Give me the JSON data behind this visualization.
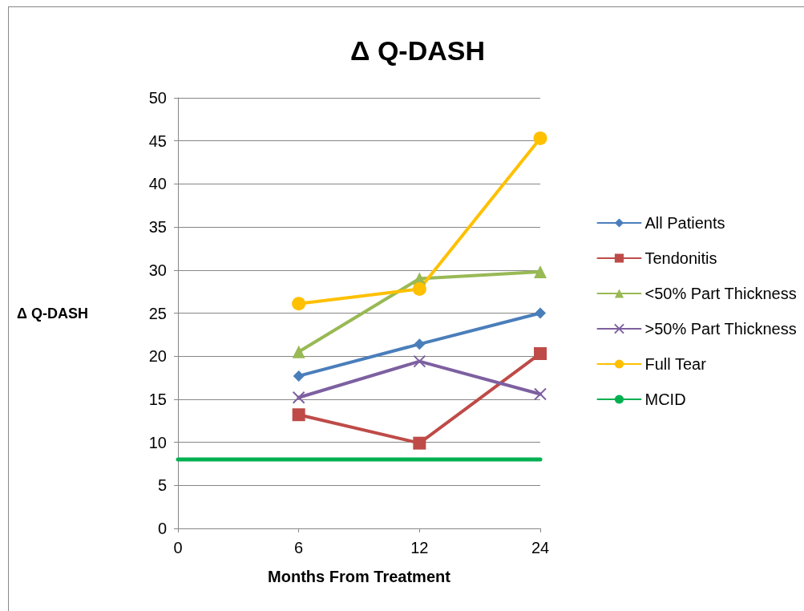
{
  "chart_data": {
    "type": "line",
    "title": "Δ Q-DASH",
    "xlabel": "Months From Treatment",
    "ylabel": "Δ Q-DASH",
    "categories": [
      "0",
      "6",
      "12",
      "24"
    ],
    "series": [
      {
        "name": "All Patients",
        "color": "#4a7ebb",
        "marker": "diamond",
        "values": [
          null,
          17.7,
          21.4,
          25.0
        ]
      },
      {
        "name": "Tendonitis",
        "color": "#be4b48",
        "marker": "square",
        "values": [
          null,
          13.2,
          9.9,
          20.3
        ]
      },
      {
        "name": "<50% Part Thickness",
        "color": "#98b954",
        "marker": "triangle",
        "values": [
          null,
          20.5,
          29.0,
          29.8
        ]
      },
      {
        "name": ">50% Part Thickness",
        "color": "#7d60a0",
        "marker": "cross",
        "values": [
          null,
          15.2,
          19.4,
          15.6
        ]
      },
      {
        "name": "Full Tear",
        "color": "#ffc000",
        "marker": "circle",
        "values": [
          null,
          26.1,
          27.8,
          45.3
        ]
      },
      {
        "name": "MCID",
        "color": "#00b050",
        "marker": "none",
        "values": [
          8,
          8,
          8,
          8
        ]
      }
    ],
    "ylim": [
      0,
      50
    ],
    "yticks": [
      0,
      5,
      10,
      15,
      20,
      25,
      30,
      35,
      40,
      45,
      50
    ],
    "grid": "y",
    "legend": "right",
    "line_style": "solid"
  }
}
